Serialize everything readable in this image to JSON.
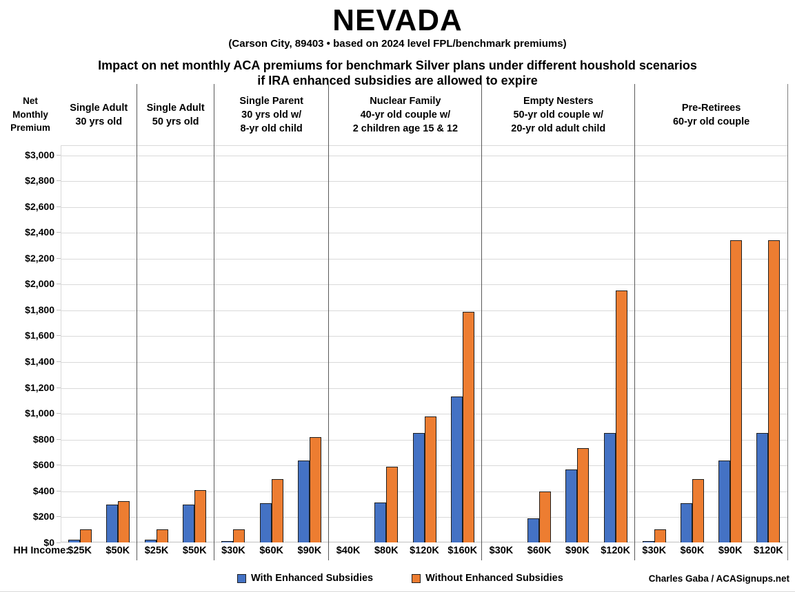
{
  "header": {
    "title": "NEVADA",
    "subtitle": "(Carson City, 89403 • based on 2024 level FPL/benchmark premiums)",
    "heading_line1": "Impact on net monthly ACA premiums for benchmark Silver plans under different houshold scenarios",
    "heading_line2": "if IRA enhanced subsidies are allowed to expire"
  },
  "chart_data": {
    "type": "bar",
    "y_axis": {
      "label": "Net\nMonthly\nPremium",
      "min": 0,
      "max": 3000,
      "tick_step": 200,
      "tick_values": [
        0,
        200,
        400,
        600,
        800,
        1000,
        1200,
        1400,
        1600,
        1800,
        2000,
        2200,
        2400,
        2600,
        2800,
        3000
      ],
      "tick_labels": [
        "$0",
        "$200",
        "$400",
        "$600",
        "$800",
        "$1,000",
        "$1,200",
        "$1,400",
        "$1,600",
        "$1,800",
        "$2,000",
        "$2,200",
        "$2,400",
        "$2,600",
        "$2,800",
        "$3,000"
      ]
    },
    "x_axis_label": "HH Income:",
    "grid": true,
    "colors": {
      "with": "#4472C4",
      "without": "#ED7D31"
    },
    "series_names": [
      "With Enhanced Subsidies",
      "Without Enhanced Subsidies"
    ],
    "groups": [
      {
        "label": "Single Adult\n30 yrs old",
        "slots": [
          {
            "income": "$25K",
            "with": 20,
            "without": 100
          },
          {
            "income": "$50K",
            "with": 295,
            "without": 320
          }
        ]
      },
      {
        "label": "Single Adult\n50 yrs old",
        "slots": [
          {
            "income": "$25K",
            "with": 20,
            "without": 100
          },
          {
            "income": "$50K",
            "with": 295,
            "without": 405
          }
        ]
      },
      {
        "label": "Single Parent\n30 yrs old w/\n8-yr old child",
        "slots": [
          {
            "income": "$30K",
            "with": 5,
            "without": 100
          },
          {
            "income": "$60K",
            "with": 305,
            "without": 490
          },
          {
            "income": "$90K",
            "with": 635,
            "without": 815
          }
        ]
      },
      {
        "label": "Nuclear Family\n40-yr old couple w/\n2 children age 15 & 12",
        "slots": [
          {
            "income": "$40K",
            "with": 0,
            "without": 0
          },
          {
            "income": "$80K",
            "with": 310,
            "without": 585
          },
          {
            "income": "$120K",
            "with": 845,
            "without": 975
          },
          {
            "income": "$160K",
            "with": 1130,
            "without": 1785
          }
        ]
      },
      {
        "label": "Empty Nesters\n50-yr old couple w/\n20-yr old adult child",
        "slots": [
          {
            "income": "$30K",
            "with": 0,
            "without": 0
          },
          {
            "income": "$60K",
            "with": 185,
            "without": 395
          },
          {
            "income": "$90K",
            "with": 565,
            "without": 730
          },
          {
            "income": "$120K",
            "with": 845,
            "without": 1950
          }
        ]
      },
      {
        "label": "Pre-Retirees\n60-yr old couple",
        "slots": [
          {
            "income": "$30K",
            "with": 5,
            "without": 100
          },
          {
            "income": "$60K",
            "with": 305,
            "without": 490
          },
          {
            "income": "$90K",
            "with": 635,
            "without": 2335
          },
          {
            "income": "$120K",
            "with": 845,
            "without": 2335
          }
        ]
      }
    ],
    "legend": [
      {
        "label": "With Enhanced Subsidies",
        "color": "#4472C4"
      },
      {
        "label": "Without Enhanced Subsidies",
        "color": "#ED7D31"
      }
    ],
    "legend_position": "bottom",
    "credit": "Charles Gaba / ACASignups.net"
  }
}
